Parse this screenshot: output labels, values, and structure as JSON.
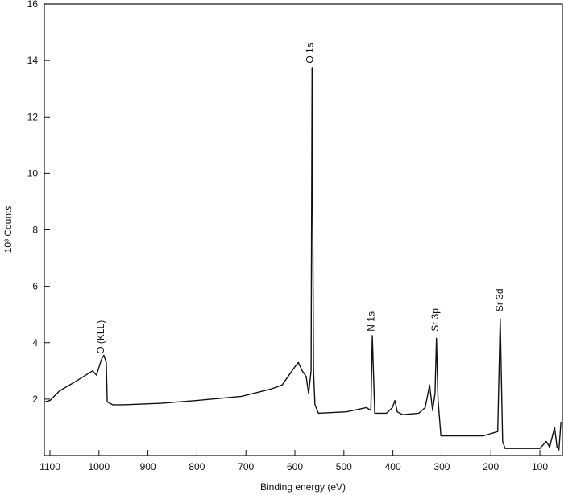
{
  "chart_data": {
    "type": "line",
    "x_label": "Binding energy (eV)",
    "y_label": "10³ Counts",
    "x": [
      1111,
      1100,
      1080,
      1050,
      1013,
      1005,
      995,
      990,
      985,
      983,
      972,
      950,
      873,
      800,
      709,
      650,
      626,
      602,
      593,
      585,
      577,
      572,
      567,
      565,
      562,
      559,
      552,
      495,
      454,
      445,
      442,
      437,
      413,
      401,
      396,
      391,
      380,
      347,
      334,
      325,
      319,
      314,
      311,
      308,
      302,
      250,
      215,
      186,
      181,
      176,
      171,
      100,
      87,
      80,
      70,
      65,
      61,
      57
    ],
    "values": [
      1.9,
      1.95,
      2.3,
      2.6,
      3.0,
      2.85,
      3.4,
      3.55,
      3.3,
      1.9,
      1.8,
      1.8,
      1.85,
      1.95,
      2.1,
      2.35,
      2.5,
      3.1,
      3.3,
      3.0,
      2.8,
      2.2,
      3.0,
      13.75,
      3.0,
      1.8,
      1.5,
      1.55,
      1.7,
      1.6,
      4.25,
      1.5,
      1.5,
      1.7,
      1.95,
      1.55,
      1.45,
      1.5,
      1.7,
      2.5,
      1.6,
      2.2,
      4.15,
      2.0,
      0.7,
      0.7,
      0.7,
      0.85,
      4.85,
      0.5,
      0.25,
      0.25,
      0.5,
      0.3,
      1.0,
      0.3,
      0.2,
      1.2
    ],
    "color": "#111111",
    "xlim": [
      1111.5,
      54
    ],
    "ylim": [
      0,
      16
    ],
    "xticks": [
      1100,
      1000,
      900,
      800,
      700,
      600,
      500,
      400,
      300,
      200,
      100
    ],
    "yticks": [
      2,
      4,
      6,
      8,
      10,
      12,
      14,
      16
    ],
    "annotations": [
      {
        "text": "O (KLL)",
        "x": 996,
        "y": 3.6
      },
      {
        "text": "O 1s",
        "x": 570,
        "y": 13.9
      },
      {
        "text": "N 1s",
        "x": 445,
        "y": 4.4
      },
      {
        "text": "Sr 3p",
        "x": 314,
        "y": 4.4
      },
      {
        "text": "Sr 3d",
        "x": 182,
        "y": 5.1
      }
    ]
  }
}
